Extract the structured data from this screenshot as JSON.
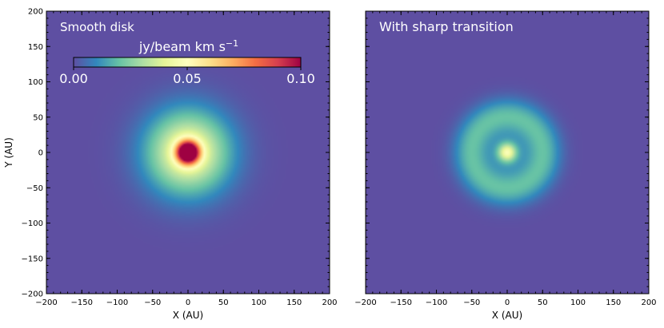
{
  "chart_data": [
    {
      "type": "heatmap",
      "title": "Smooth disk",
      "xlabel": "X (AU)",
      "ylabel": "Y (AU)",
      "xlim": [
        -200,
        200
      ],
      "ylim": [
        -200,
        200
      ],
      "xticks": [
        "−200",
        "−150",
        "−100",
        "−50",
        "0",
        "50",
        "100",
        "150",
        "200"
      ],
      "yticks": [
        "−200",
        "−150",
        "−100",
        "−50",
        "0",
        "50",
        "100",
        "150",
        "200"
      ],
      "colormap": "Spectral_r",
      "vmin": 0.0,
      "vmax": 0.1,
      "colorbar": {
        "label": "jy/beam km s",
        "label_superscript": "−1",
        "ticks": [
          "0.00",
          "0.05",
          "0.10"
        ],
        "placement": "top-left inset"
      },
      "emission": {
        "background": 0.0,
        "components": [
          {
            "kind": "gaussian",
            "center_au": [
              0,
              0
            ],
            "peak": 0.1,
            "sigma_au": 11
          },
          {
            "kind": "gaussian",
            "center_au": [
              0,
              0
            ],
            "peak": 0.048,
            "sigma_au": 40
          }
        ]
      }
    },
    {
      "type": "heatmap",
      "title": "With sharp transition",
      "xlabel": "X (AU)",
      "ylabel": "",
      "xlim": [
        -200,
        200
      ],
      "ylim": [
        -200,
        200
      ],
      "xticks": [
        "−200",
        "−150",
        "−100",
        "−50",
        "0",
        "50",
        "100",
        "150",
        "200"
      ],
      "yticks": [],
      "colormap": "Spectral_r",
      "vmin": 0.0,
      "vmax": 0.1,
      "emission": {
        "background": 0.0,
        "components": [
          {
            "kind": "gaussian",
            "center_au": [
              0,
              0
            ],
            "peak": 0.038,
            "sigma_au": 9
          },
          {
            "kind": "ring",
            "center_au": [
              0,
              0
            ],
            "peak": 0.018,
            "radius_au": 52,
            "width_au": 17
          },
          {
            "kind": "gaussian",
            "center_au": [
              0,
              0
            ],
            "peak": 0.01,
            "sigma_au": 30
          }
        ]
      }
    }
  ]
}
